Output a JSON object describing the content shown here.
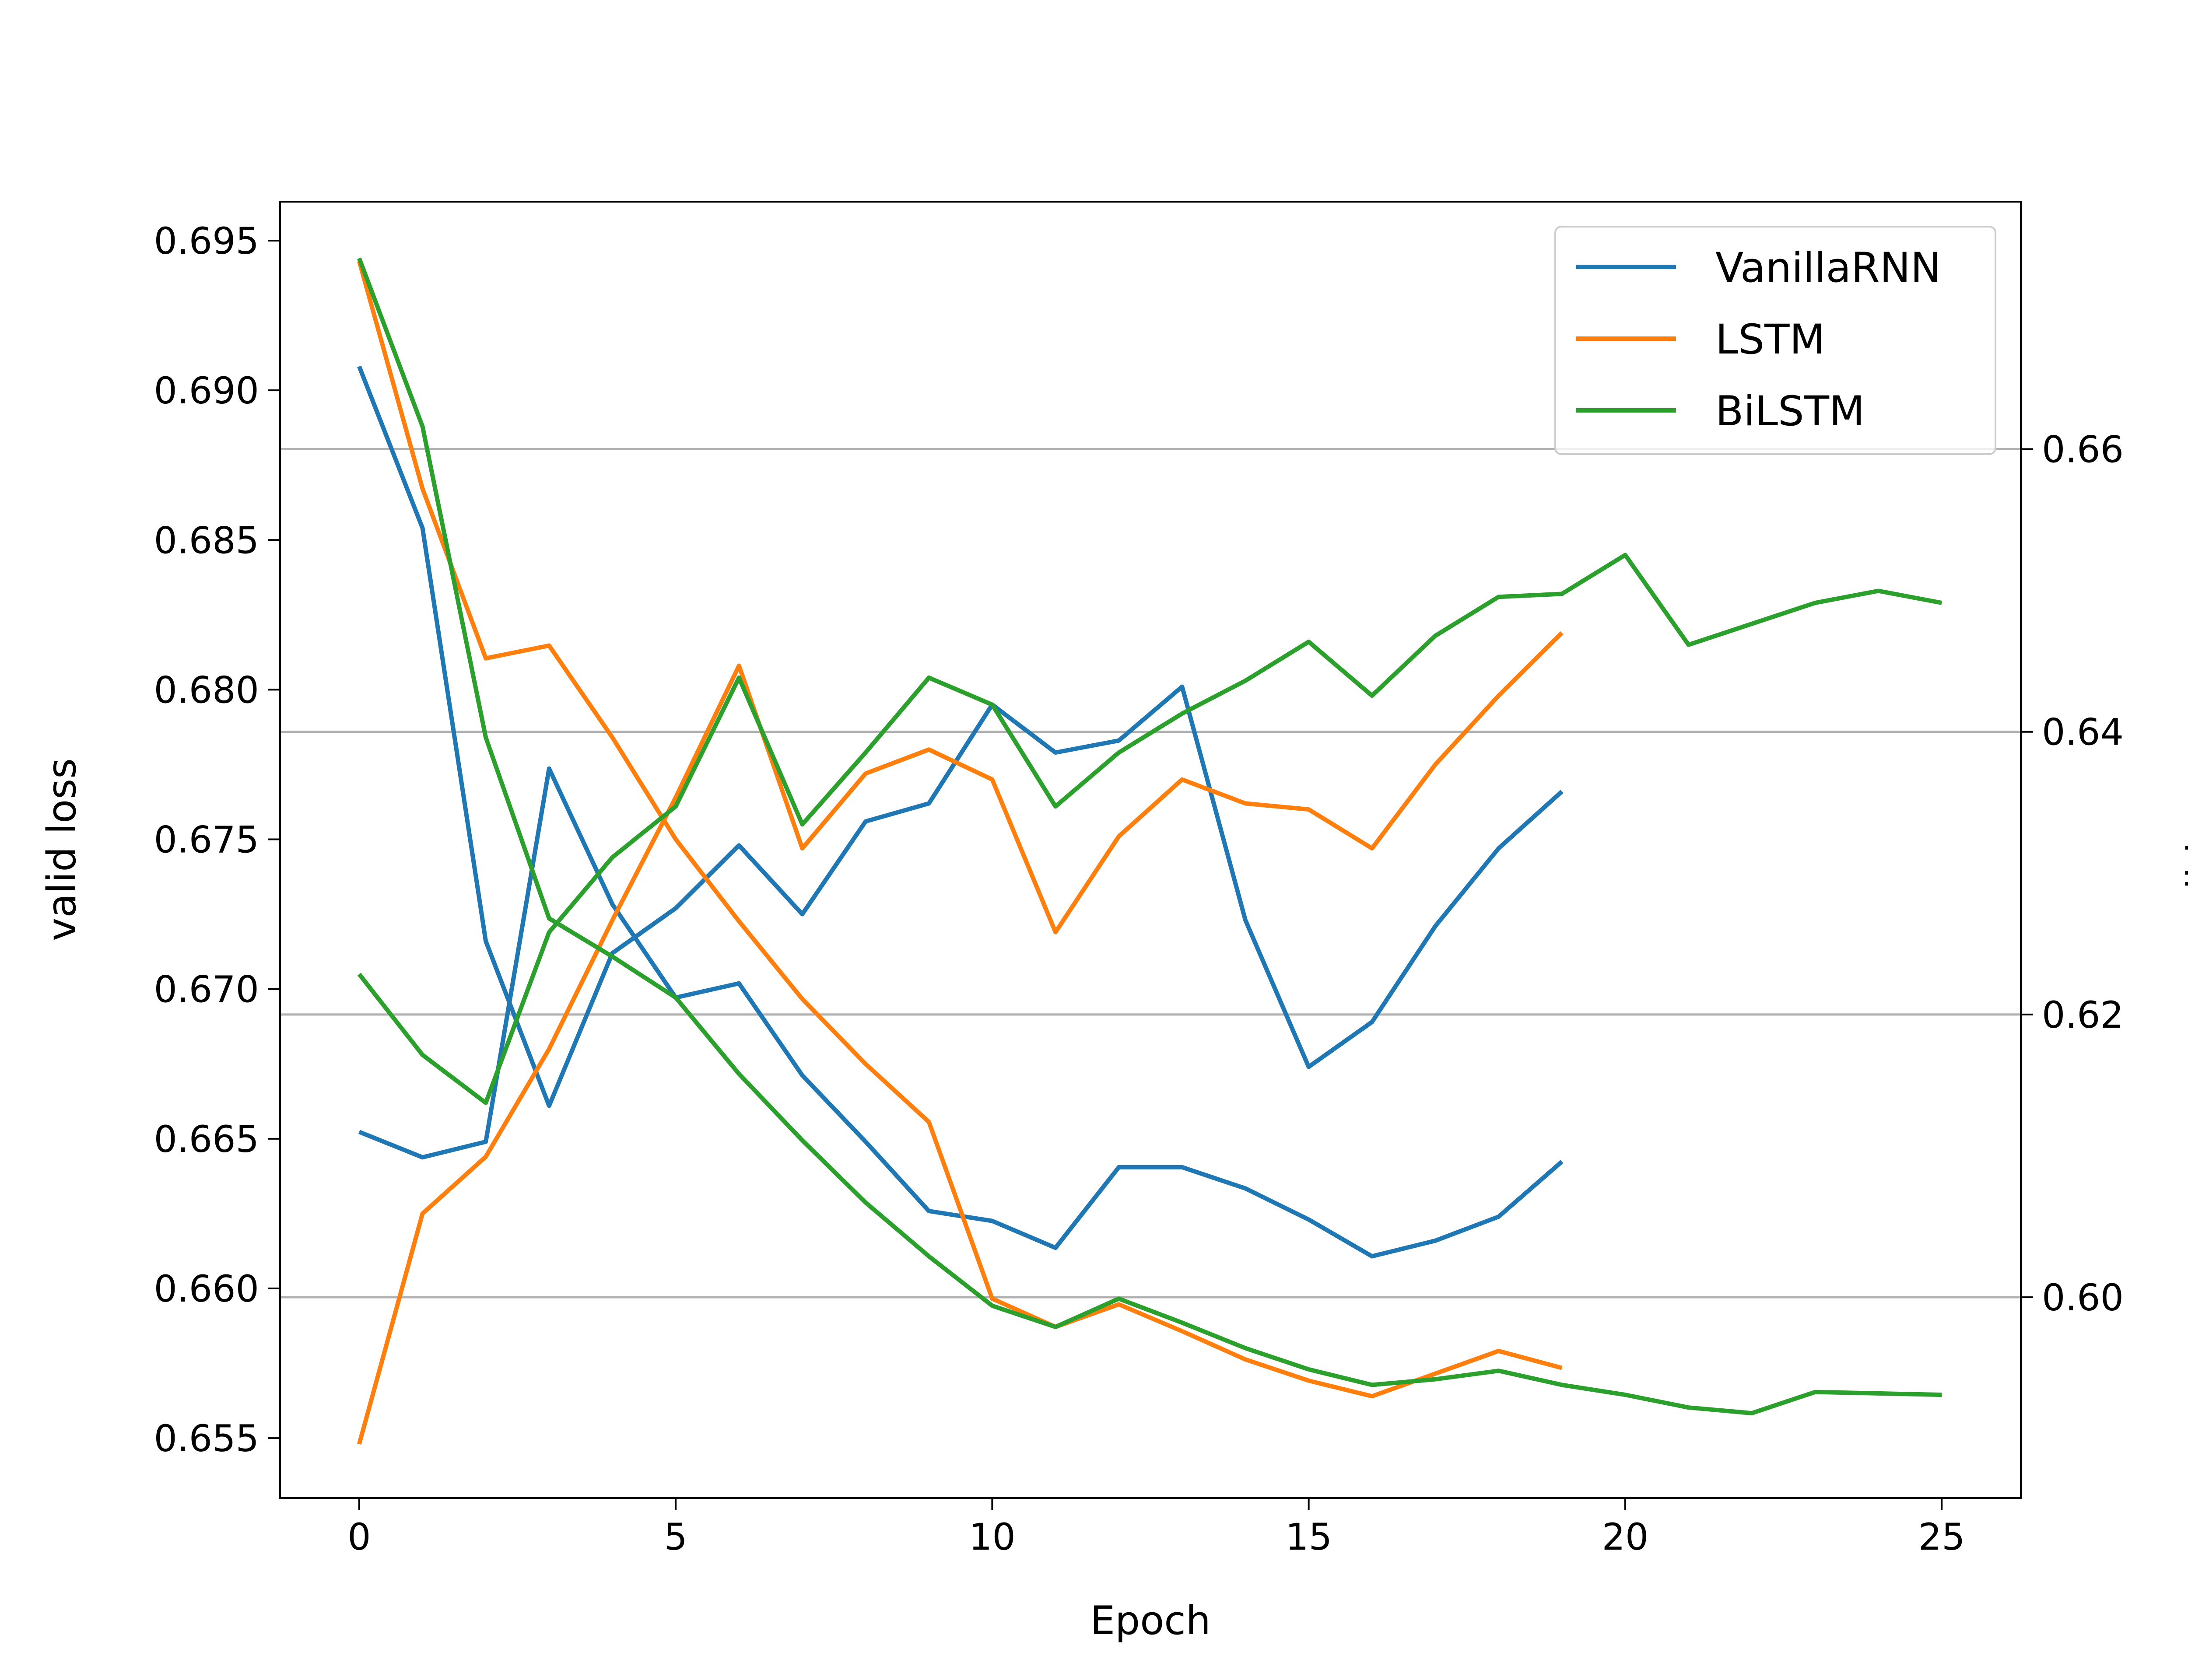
{
  "chart_data": {
    "type": "line",
    "xlabel": "Epoch",
    "ylabel_left": "valid loss",
    "ylabel_right": "valid acc",
    "xlim": [
      -1.25,
      26.25
    ],
    "ylim_left": [
      0.653,
      0.6963
    ],
    "ylim_right": [
      0.5858,
      0.6775
    ],
    "x_ticks": [
      0,
      5,
      10,
      15,
      20,
      25
    ],
    "y_ticks_left": [
      0.655,
      0.66,
      0.665,
      0.67,
      0.675,
      0.68,
      0.685,
      0.69,
      0.695
    ],
    "y_ticks_left_labels": [
      "0.655",
      "0.660",
      "0.665",
      "0.670",
      "0.675",
      "0.680",
      "0.685",
      "0.690",
      "0.695"
    ],
    "y_ticks_right": [
      0.6,
      0.62,
      0.64,
      0.66
    ],
    "y_ticks_right_labels": [
      "0.60",
      "0.62",
      "0.64",
      "0.66"
    ],
    "grid": "right-axis horizontal",
    "legend": {
      "position": "top-right",
      "entries": [
        "VanillaRNN",
        "LSTM",
        "BiLSTM"
      ]
    },
    "series": [
      {
        "name": "VanillaRNN",
        "color": "#1f77b4",
        "loss": [
          0.6908,
          0.6854,
          0.6716,
          0.6661,
          0.6712,
          0.6727,
          0.6748,
          0.6725,
          0.6756,
          0.6762,
          0.6795,
          0.6779,
          0.6783,
          0.6801,
          0.6723,
          0.6674,
          0.6689,
          0.6721,
          0.6747,
          0.6766
        ],
        "acc": [
          0.6117,
          0.6099,
          0.611,
          0.6374,
          0.6278,
          0.6212,
          0.6222,
          0.6157,
          0.611,
          0.6061,
          0.6054,
          0.6035,
          0.6092,
          0.6092,
          0.6077,
          0.6055,
          0.6029,
          0.604,
          0.6057,
          0.6096
        ]
      },
      {
        "name": "LSTM",
        "color": "#ff7f0e",
        "loss": [
          0.6548,
          0.6625,
          0.6644,
          0.668,
          0.6723,
          0.6764,
          0.6808,
          0.6747,
          0.6772,
          0.678,
          0.677,
          0.6719,
          0.6751,
          0.677,
          0.6762,
          0.676,
          0.6747,
          0.6775,
          0.6798,
          0.6819
        ],
        "acc": [
          0.6733,
          0.6572,
          0.6452,
          0.6461,
          0.6396,
          0.6324,
          0.6266,
          0.6211,
          0.6165,
          0.6124,
          0.5999,
          0.5979,
          0.5995,
          0.5976,
          0.5956,
          0.5941,
          0.593,
          0.5946,
          0.5962,
          0.595
        ]
      },
      {
        "name": "BiLSTM",
        "color": "#2ca02c",
        "loss": [
          0.6705,
          0.6678,
          0.6662,
          0.6719,
          0.6744,
          0.6761,
          0.6804,
          0.6755,
          0.6779,
          0.6804,
          0.6795,
          0.6761,
          0.6779,
          0.6792,
          0.6803,
          0.6816,
          0.6798,
          0.6818,
          0.6831,
          0.6832,
          0.6845,
          0.6815,
          0.6822,
          0.6829,
          0.6833,
          0.6829
        ],
        "acc": [
          0.6735,
          0.6616,
          0.6396,
          0.6268,
          0.6241,
          0.6212,
          0.6158,
          0.6111,
          0.6067,
          0.6029,
          0.5994,
          0.5979,
          0.5999,
          0.5982,
          0.5964,
          0.5949,
          0.5938,
          0.5942,
          0.5948,
          0.5938,
          0.5931,
          0.5922,
          0.5918,
          0.5933,
          0.5932,
          0.5931
        ]
      }
    ]
  }
}
